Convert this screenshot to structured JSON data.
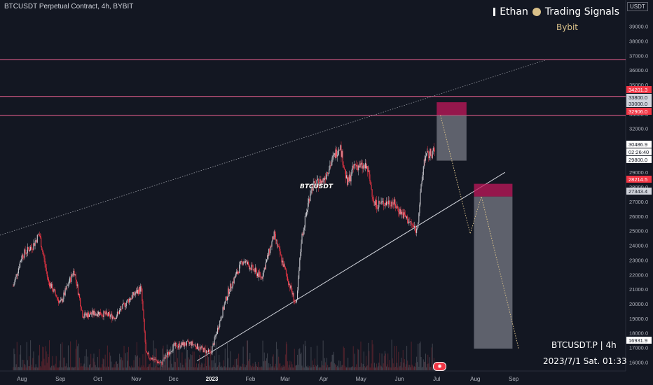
{
  "header": {
    "title": "BTCUSDT Perpetual Contract, 4h, BYBIT",
    "brand_name": "Ethan",
    "brand_signal": "Trading Signals",
    "brand_sub": "Bybit",
    "unit": "USDT"
  },
  "watermark": {
    "line1": "BTCUSDT.P | 4h",
    "line2": "2023/7/1 Sat. 01:33"
  },
  "symbol_tag": "BTCUSDT",
  "colors": {
    "background": "#131722",
    "candle_up": "#c9c9cf",
    "candle_down": "#f23645",
    "hline": "#f06292",
    "risk_zone": "#c2185b",
    "target_zone": "#787b86",
    "projection": "#d9c089"
  },
  "chart_data": {
    "type": "candlestick",
    "y_ticks": [
      "16000.0",
      "17000.0",
      "18000.0",
      "19000.0",
      "20000.0",
      "21000.0",
      "22000.0",
      "23000.0",
      "24000.0",
      "25000.0",
      "26000.0",
      "27000.0",
      "28000.0",
      "29000.0",
      "30000.0",
      "31000.0",
      "32000.0",
      "33000.0",
      "34000.0",
      "35000.0",
      "36000.0",
      "37000.0",
      "38000.0",
      "39000.0"
    ],
    "ylim": [
      15400,
      40800
    ],
    "x_ticks": [
      "Aug",
      "Sep",
      "Oct",
      "Nov",
      "Dec",
      "2023",
      "Feb",
      "Mar",
      "Apr",
      "May",
      "Jun",
      "Jul",
      "Aug",
      "Sep"
    ],
    "series": [
      {
        "date": "2022-07-25",
        "price": 21200
      },
      {
        "date": "2022-08-01",
        "price": 23300
      },
      {
        "date": "2022-08-10",
        "price": 24000
      },
      {
        "date": "2022-08-15",
        "price": 24800
      },
      {
        "date": "2022-08-22",
        "price": 21600
      },
      {
        "date": "2022-09-01",
        "price": 20000
      },
      {
        "date": "2022-09-09",
        "price": 21700
      },
      {
        "date": "2022-09-12",
        "price": 22300
      },
      {
        "date": "2022-09-19",
        "price": 19200
      },
      {
        "date": "2022-10-01",
        "price": 19400
      },
      {
        "date": "2022-10-15",
        "price": 19100
      },
      {
        "date": "2022-10-25",
        "price": 20200
      },
      {
        "date": "2022-11-05",
        "price": 21100
      },
      {
        "date": "2022-11-09",
        "price": 16500
      },
      {
        "date": "2022-11-21",
        "price": 15900
      },
      {
        "date": "2022-12-01",
        "price": 17100
      },
      {
        "date": "2022-12-15",
        "price": 17300
      },
      {
        "date": "2022-12-31",
        "price": 16600
      },
      {
        "date": "2023-01-14",
        "price": 20800
      },
      {
        "date": "2023-01-26",
        "price": 23000
      },
      {
        "date": "2023-02-10",
        "price": 21800
      },
      {
        "date": "2023-02-20",
        "price": 24700
      },
      {
        "date": "2023-03-10",
        "price": 19800
      },
      {
        "date": "2023-03-14",
        "price": 24400
      },
      {
        "date": "2023-03-22",
        "price": 28000
      },
      {
        "date": "2023-03-31",
        "price": 28400
      },
      {
        "date": "2023-04-14",
        "price": 30900
      },
      {
        "date": "2023-04-20",
        "price": 28200
      },
      {
        "date": "2023-04-26",
        "price": 29500
      },
      {
        "date": "2023-05-06",
        "price": 29300
      },
      {
        "date": "2023-05-12",
        "price": 26800
      },
      {
        "date": "2023-05-26",
        "price": 27000
      },
      {
        "date": "2023-06-15",
        "price": 25000
      },
      {
        "date": "2023-06-21",
        "price": 30000
      },
      {
        "date": "2023-06-30",
        "price": 30487
      }
    ],
    "horizontal_lines": [
      36700,
      34200,
      32906
    ],
    "price_labels": [
      {
        "value": "34201.3",
        "style": "red"
      },
      {
        "value": "33800.0",
        "style": "gray"
      },
      {
        "value": "33000.0",
        "style": "gray"
      },
      {
        "value": "32906.0",
        "style": "red"
      },
      {
        "value": "30486.9",
        "style": "white"
      },
      {
        "value": "02:26:40",
        "style": "white"
      },
      {
        "value": "29800.0",
        "style": "white"
      },
      {
        "value": "28214.5",
        "style": "red"
      },
      {
        "value": "27343.4",
        "style": "gray"
      },
      {
        "value": "16931.9",
        "style": "white"
      }
    ],
    "short_position_1": {
      "entry": 32906,
      "stop": 33800,
      "target": 29800,
      "start": "2023-07-01",
      "end": "2023-07-25"
    },
    "short_position_2": {
      "entry": 27343.4,
      "stop": 28214.5,
      "target": 16931.9,
      "start": "2023-07-31",
      "end": "2023-08-31"
    }
  }
}
